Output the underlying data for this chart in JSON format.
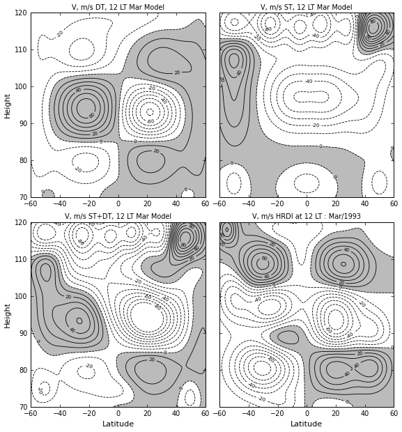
{
  "titles": [
    "V, m/s DT, 12 LT Mar Model",
    "V, m/s ST, 12 LT Mar Model",
    "V, m/s ST+DT, 12 LT Mar Model",
    "V, m/s HRDI at 12 LT : Mar/1993"
  ],
  "xlim": [
    -60,
    60
  ],
  "ylim": [
    70,
    120
  ],
  "xticks": [
    -60,
    -40,
    -20,
    0,
    20,
    40,
    60
  ],
  "yticks": [
    70,
    80,
    90,
    100,
    110,
    120
  ],
  "xlabel": "Latitude",
  "ylabel": "Height",
  "background_color": "#ffffff",
  "shading_color": "#bbbbbb"
}
